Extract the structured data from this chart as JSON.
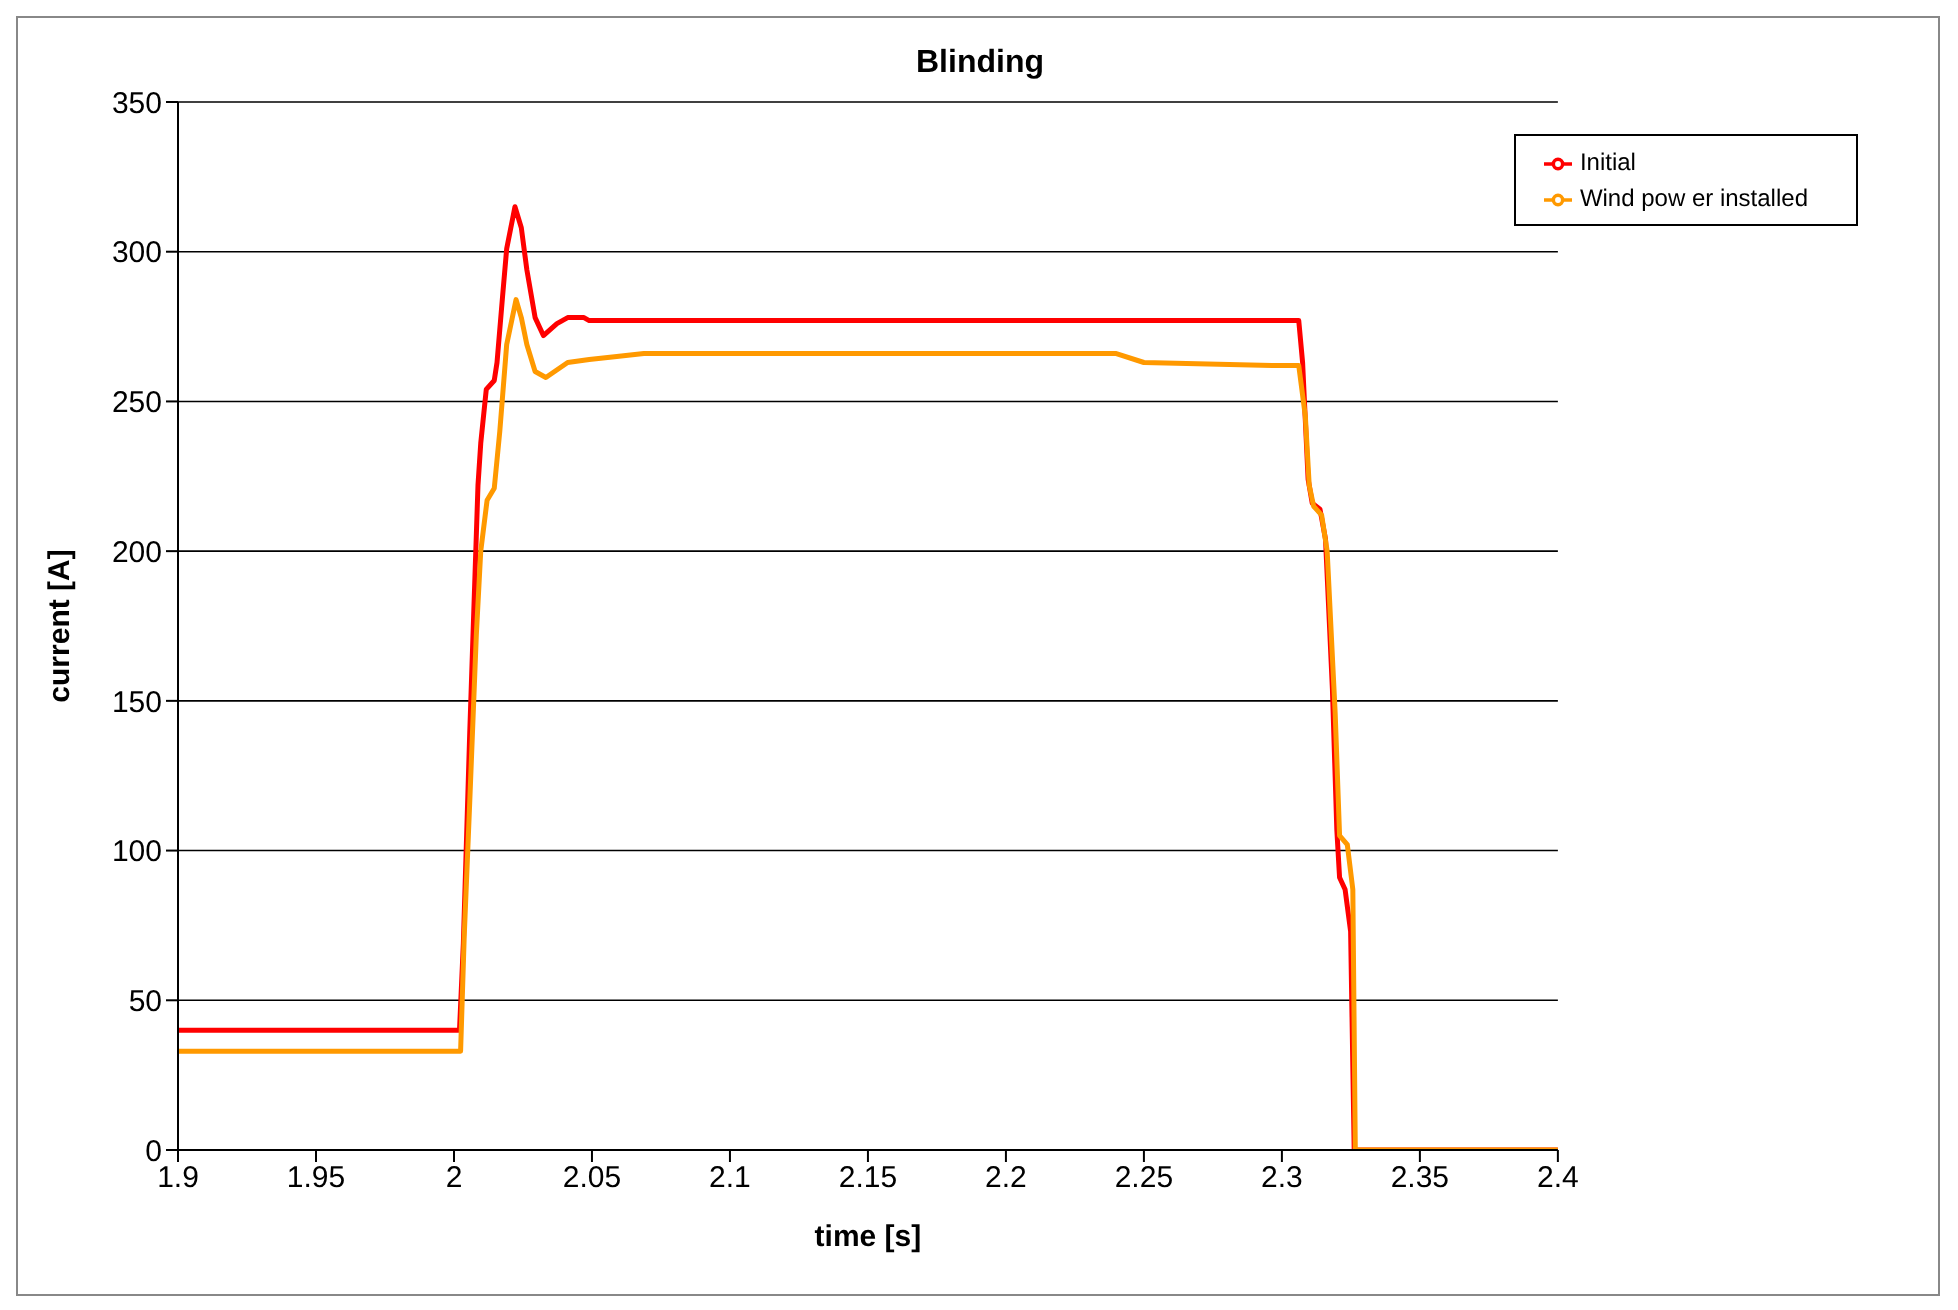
{
  "chart_data": {
    "type": "line",
    "title": "Blinding",
    "xlabel": "time [s]",
    "ylabel": "current [A]",
    "xlim": [
      1.9,
      2.4
    ],
    "xticks": [
      1.9,
      1.95,
      2,
      2.05,
      2.1,
      2.15,
      2.2,
      2.25,
      2.3,
      2.35,
      2.4
    ],
    "ylim": [
      0,
      350
    ],
    "yticks": [
      0,
      50,
      100,
      150,
      200,
      250,
      300,
      350
    ],
    "grid": "y",
    "legend": "top right",
    "marker": "none",
    "line_style": "solid",
    "series": [
      {
        "name": "Initial",
        "color": "#ff0000",
        "x": [
          1.9,
          2.002,
          2.0034,
          2.0057,
          2.0087,
          2.0097,
          2.0117,
          2.0146,
          2.0156,
          2.0176,
          2.0191,
          2.0221,
          2.0244,
          2.0264,
          2.0294,
          2.0324,
          2.0373,
          2.0412,
          2.0471,
          2.049,
          2.3061,
          2.3075,
          2.3095,
          2.311,
          2.3138,
          2.3158,
          2.3183,
          2.3199,
          2.3209,
          2.3229,
          2.3249,
          2.3262,
          2.4
        ],
        "values": [
          40,
          40,
          69,
          139,
          222,
          236,
          254,
          257,
          263,
          285,
          301,
          315,
          308,
          294,
          278,
          272,
          276,
          278,
          278,
          277,
          277,
          263,
          224,
          216,
          214,
          204,
          154,
          107,
          91,
          87,
          73,
          0,
          0
        ]
      },
      {
        "name": "Wind pow er installed",
        "color": "#ff9900",
        "x": [
          1.9,
          2.0024,
          2.0037,
          2.0057,
          2.0081,
          2.0097,
          2.012,
          2.0146,
          2.0166,
          2.0191,
          2.0225,
          2.0244,
          2.0264,
          2.0294,
          2.0333,
          2.0412,
          2.049,
          2.059,
          2.0688,
          2.1,
          2.24,
          2.25,
          2.2976,
          2.3061,
          2.3085,
          2.3099,
          2.3115,
          2.3144,
          2.3164,
          2.3193,
          2.3209,
          2.3237,
          2.3257,
          2.3266,
          2.4
        ],
        "values": [
          33,
          33,
          71,
          116,
          172,
          200,
          217,
          221,
          240,
          269,
          284,
          278,
          269,
          260,
          258,
          263,
          264,
          265,
          266,
          266,
          266,
          263,
          262,
          262,
          245,
          222,
          215,
          212,
          200,
          146,
          105,
          102,
          87,
          0,
          0
        ]
      }
    ]
  }
}
